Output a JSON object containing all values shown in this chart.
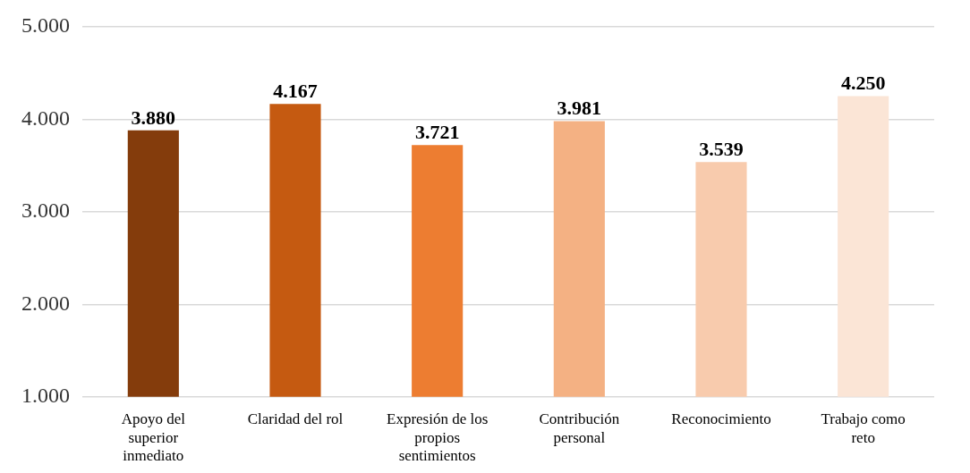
{
  "chart_data": {
    "type": "bar",
    "categories": [
      "Apoyo del superior inmediato",
      "Claridad del rol",
      "Expresión de los propios sentimientos",
      "Contribución personal",
      "Reconocimiento",
      "Trabajo como reto"
    ],
    "values": [
      3.88,
      4.167,
      3.721,
      3.981,
      3.539,
      4.25
    ],
    "value_labels": [
      "3.880",
      "4.167",
      "3.721",
      "3.981",
      "3.539",
      "4.250"
    ],
    "colors": [
      "#843c0c",
      "#c55a11",
      "#ed7d31",
      "#f4b183",
      "#f8cbad",
      "#fbe5d6"
    ],
    "ylim": [
      1,
      5
    ],
    "yticks": [
      {
        "value": 1,
        "label": "1.000"
      },
      {
        "value": 2,
        "label": "2.000"
      },
      {
        "value": 3,
        "label": "3.000"
      },
      {
        "value": 4,
        "label": "4.000"
      },
      {
        "value": 5,
        "label": "5.000"
      }
    ],
    "grid": "y",
    "legend": false
  }
}
